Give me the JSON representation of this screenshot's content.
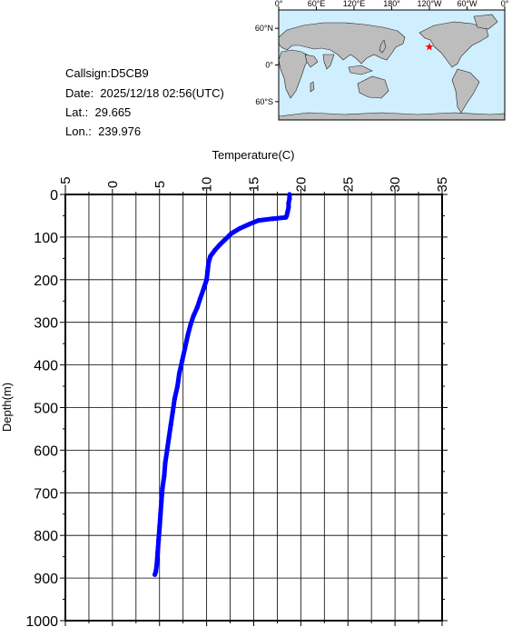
{
  "info": {
    "callsign": "Callsign:D5CB9",
    "date": "Date:  2025/12/18 02:56(UTC)",
    "lat": "Lat.:  29.665",
    "lon": "Lon.:  239.976"
  },
  "map": {
    "lon_ticks": [
      "0°",
      "60°E",
      "120°E",
      "180°",
      "120°W",
      "60°W",
      "0°"
    ],
    "lat_ticks": [
      "60°N",
      "0°",
      "60°S"
    ],
    "marker": {
      "lat": 29.665,
      "lon": 239.976
    },
    "colors": {
      "ocean": "#cfefff",
      "land": "#bdbdbd",
      "marker": "#ff0000"
    }
  },
  "chart_data": {
    "type": "line",
    "title": "",
    "xlabel": "Temperature(C)",
    "ylabel": "Depth(m)",
    "xlim": [
      -5,
      35
    ],
    "ylim": [
      0,
      1000
    ],
    "y_inverted": true,
    "x_axis_position": "top",
    "grid": true,
    "x_ticks": [
      -5,
      0,
      5,
      10,
      15,
      20,
      25,
      30,
      35
    ],
    "y_ticks": [
      0,
      100,
      200,
      300,
      400,
      500,
      600,
      700,
      800,
      900,
      1000
    ],
    "series": [
      {
        "color": "#0000ff",
        "points": [
          [
            18.8,
            0
          ],
          [
            18.8,
            10
          ],
          [
            18.7,
            20
          ],
          [
            18.7,
            30
          ],
          [
            18.6,
            40
          ],
          [
            18.5,
            50
          ],
          [
            18.4,
            54
          ],
          [
            17.0,
            57
          ],
          [
            15.5,
            61
          ],
          [
            14.5,
            70
          ],
          [
            13.5,
            80
          ],
          [
            12.6,
            92
          ],
          [
            12.0,
            105
          ],
          [
            11.4,
            118
          ],
          [
            10.9,
            130
          ],
          [
            10.4,
            145
          ],
          [
            10.2,
            160
          ],
          [
            10.1,
            180
          ],
          [
            10.0,
            200
          ],
          [
            9.7,
            220
          ],
          [
            9.3,
            245
          ],
          [
            9.0,
            265
          ],
          [
            8.6,
            285
          ],
          [
            8.3,
            305
          ],
          [
            8.0,
            330
          ],
          [
            7.7,
            360
          ],
          [
            7.4,
            390
          ],
          [
            7.1,
            420
          ],
          [
            6.9,
            450
          ],
          [
            6.6,
            480
          ],
          [
            6.4,
            510
          ],
          [
            6.2,
            540
          ],
          [
            6.0,
            570
          ],
          [
            5.8,
            600
          ],
          [
            5.6,
            630
          ],
          [
            5.5,
            660
          ],
          [
            5.3,
            690
          ],
          [
            5.2,
            720
          ],
          [
            5.1,
            750
          ],
          [
            5.0,
            780
          ],
          [
            4.9,
            810
          ],
          [
            4.8,
            840
          ],
          [
            4.7,
            870
          ],
          [
            4.6,
            885
          ],
          [
            4.5,
            892
          ]
        ]
      }
    ]
  }
}
